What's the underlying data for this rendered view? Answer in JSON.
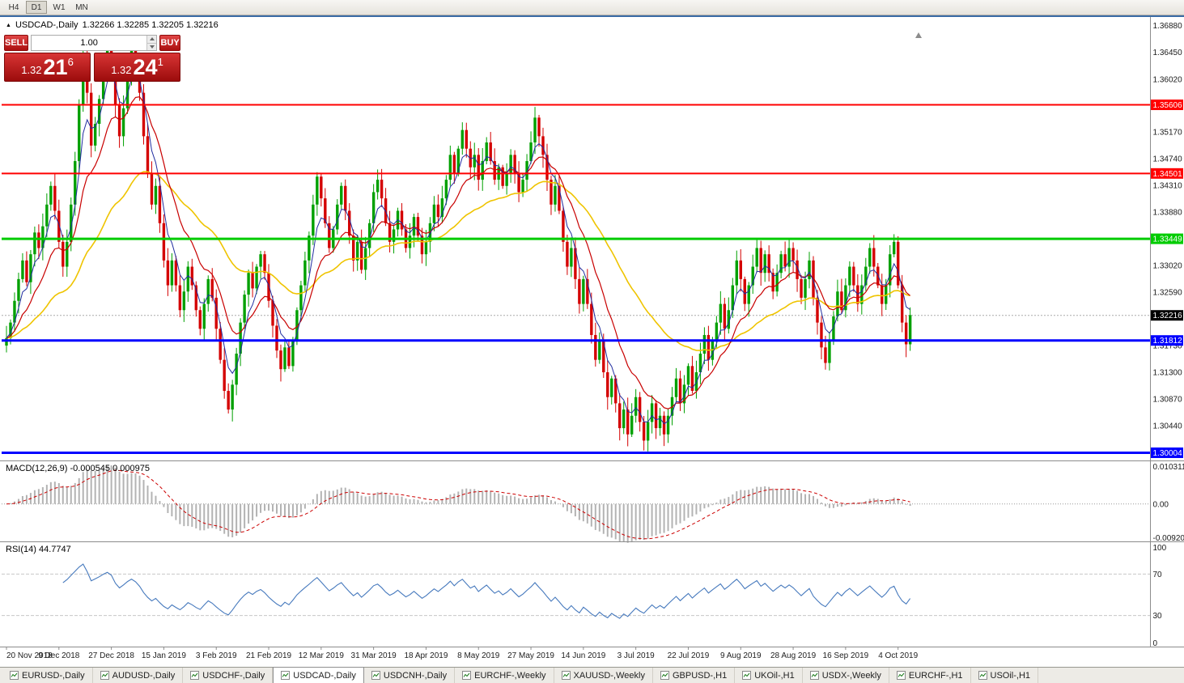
{
  "toolbar": {
    "timeframes": [
      {
        "label": "H4",
        "active": false
      },
      {
        "label": "D1",
        "active": true
      },
      {
        "label": "W1",
        "active": false
      },
      {
        "label": "MN",
        "active": false
      }
    ]
  },
  "chart": {
    "title": "USDCAD-,Daily",
    "ohlc": "1.32266 1.32285 1.32205 1.32216"
  },
  "trade_panel": {
    "sell_label": "SELL",
    "buy_label": "BUY",
    "volume": "1.00",
    "sell_price": {
      "big": "1.32",
      "pips": "21",
      "point": "6"
    },
    "buy_price": {
      "big": "1.32",
      "pips": "24",
      "point": "1"
    }
  },
  "price_axis": {
    "ticks": [
      "1.36880",
      "1.36450",
      "1.36020",
      "1.35170",
      "1.34740",
      "1.34310",
      "1.33880",
      "1.33020",
      "1.32590",
      "1.31730",
      "1.31300",
      "1.30870",
      "1.30440"
    ],
    "current": "1.32216"
  },
  "levels": [
    {
      "value": "1.35606",
      "price": 1.35606,
      "color": "#FF0000",
      "width": 2
    },
    {
      "value": "1.34501",
      "price": 1.34501,
      "color": "#FF0000",
      "width": 2
    },
    {
      "value": "1.33449",
      "price": 1.33449,
      "color": "#00CC00",
      "width": 3
    },
    {
      "value": "1.31812",
      "price": 1.31812,
      "color": "#0000FF",
      "width": 3
    },
    {
      "value": "1.30004",
      "price": 1.30004,
      "color": "#0000FF",
      "width": 3
    }
  ],
  "macd_panel": {
    "label": "MACD(12,26,9) -0.000545 0.000975",
    "axis": [
      "0.010311",
      "0.00",
      "-0.009203"
    ]
  },
  "rsi_panel": {
    "label": "RSI(14) 44.7747",
    "axis": [
      "100",
      "70",
      "30",
      "0"
    ]
  },
  "date_axis": [
    "20 Nov 2018",
    "9 Dec 2018",
    "27 Dec 2018",
    "15 Jan 2019",
    "3 Feb 2019",
    "21 Feb 2019",
    "12 Mar 2019",
    "31 Mar 2019",
    "18 Apr 2019",
    "8 May 2019",
    "27 May 2019",
    "14 Jun 2019",
    "3 Jul 2019",
    "22 Jul 2019",
    "9 Aug 2019",
    "28 Aug 2019",
    "16 Sep 2019",
    "4 Oct 2019"
  ],
  "tabs": [
    {
      "label": "EURUSD-,Daily",
      "active": false
    },
    {
      "label": "AUDUSD-,Daily",
      "active": false
    },
    {
      "label": "USDCHF-,Daily",
      "active": false
    },
    {
      "label": "USDCAD-,Daily",
      "active": true
    },
    {
      "label": "USDCNH-,Daily",
      "active": false
    },
    {
      "label": "EURCHF-,Weekly",
      "active": false
    },
    {
      "label": "XAUUSD-,Weekly",
      "active": false
    },
    {
      "label": "GBPUSD-,H1",
      "active": false
    },
    {
      "label": "UKOil-,H1",
      "active": false
    },
    {
      "label": "USDX-,Weekly",
      "active": false
    },
    {
      "label": "EURCHF-,H1",
      "active": false
    },
    {
      "label": "USOil-,H1",
      "active": false
    }
  ],
  "chart_data": {
    "type": "candlestick",
    "title": "USDCAD-,Daily",
    "ylim": [
      1.2988,
      1.3702
    ],
    "bull_color": "#00A000",
    "bear_color": "#D40000",
    "closes": [
      1.3185,
      1.321,
      1.3245,
      1.328,
      1.331,
      1.3275,
      1.332,
      1.3355,
      1.333,
      1.3365,
      1.34,
      1.343,
      1.339,
      1.334,
      1.33,
      1.334,
      1.34,
      1.347,
      1.356,
      1.364,
      1.358,
      1.3495,
      1.353,
      1.357,
      1.362,
      1.366,
      1.3635,
      1.356,
      1.351,
      1.3555,
      1.361,
      1.365,
      1.3625,
      1.358,
      1.351,
      1.345,
      1.34,
      1.343,
      1.337,
      1.331,
      1.327,
      1.331,
      1.327,
      1.323,
      1.326,
      1.33,
      1.327,
      1.323,
      1.32,
      1.324,
      1.328,
      1.325,
      1.32,
      1.315,
      1.31,
      1.307,
      1.311,
      1.316,
      1.321,
      1.3255,
      1.329,
      1.3265,
      1.33,
      1.332,
      1.329,
      1.3245,
      1.3205,
      1.3165,
      1.3135,
      1.317,
      1.314,
      1.318,
      1.323,
      1.327,
      1.331,
      1.335,
      1.34,
      1.3445,
      1.341,
      1.337,
      1.333,
      1.336,
      1.34,
      1.343,
      1.339,
      1.335,
      1.331,
      1.334,
      1.3295,
      1.333,
      1.337,
      1.342,
      1.344,
      1.341,
      1.337,
      1.334,
      1.336,
      1.339,
      1.336,
      1.333,
      1.335,
      1.338,
      1.335,
      1.332,
      1.334,
      1.337,
      1.34,
      1.338,
      1.341,
      1.344,
      1.348,
      1.345,
      1.349,
      1.352,
      1.349,
      1.346,
      1.348,
      1.344,
      1.347,
      1.35,
      1.347,
      1.344,
      1.346,
      1.343,
      1.345,
      1.348,
      1.345,
      1.342,
      1.344,
      1.347,
      1.35,
      1.354,
      1.351,
      1.348,
      1.344,
      1.34,
      1.343,
      1.339,
      1.334,
      1.33,
      1.333,
      1.328,
      1.324,
      1.328,
      1.324,
      1.319,
      1.315,
      1.318,
      1.313,
      1.309,
      1.312,
      1.308,
      1.304,
      1.307,
      1.303,
      1.306,
      1.309,
      1.305,
      1.302,
      1.305,
      1.308,
      1.304,
      1.306,
      1.303,
      1.306,
      1.309,
      1.312,
      1.308,
      1.311,
      1.314,
      1.31,
      1.313,
      1.316,
      1.319,
      1.315,
      1.318,
      1.321,
      1.324,
      1.32,
      1.323,
      1.327,
      1.331,
      1.328,
      1.324,
      1.327,
      1.33,
      1.333,
      1.329,
      1.332,
      1.329,
      1.326,
      1.329,
      1.332,
      1.33,
      1.333,
      1.331,
      1.328,
      1.325,
      1.328,
      1.331,
      1.325,
      1.321,
      1.317,
      1.3145,
      1.318,
      1.322,
      1.326,
      1.323,
      1.327,
      1.33,
      1.327,
      1.324,
      1.327,
      1.33,
      1.333,
      1.33,
      1.327,
      1.324,
      1.327,
      1.332,
      1.334,
      1.327,
      1.321,
      1.3175,
      1.3222
    ],
    "overlays": [
      {
        "name": "fast-ma",
        "color": "#202DA0"
      },
      {
        "name": "medium-ma",
        "color": "#C80000"
      },
      {
        "name": "slow-ma",
        "color": "#EFC400"
      }
    ],
    "horizontal_lines": [
      1.35606,
      1.34501,
      1.33449,
      1.31812,
      1.30004
    ],
    "current_price": 1.32216,
    "indicators": [
      {
        "name": "MACD",
        "params": [
          12,
          26,
          9
        ],
        "display": "-0.000545 0.000975",
        "range": [
          -0.009203,
          0.010311
        ],
        "signal_color": "#CC0000",
        "histogram_color": "#B3B3B3"
      },
      {
        "name": "RSI",
        "params": [
          14
        ],
        "value": 44.7747,
        "range": [
          0,
          100
        ],
        "levels": [
          30,
          70
        ],
        "color": "#4679BD"
      }
    ]
  }
}
